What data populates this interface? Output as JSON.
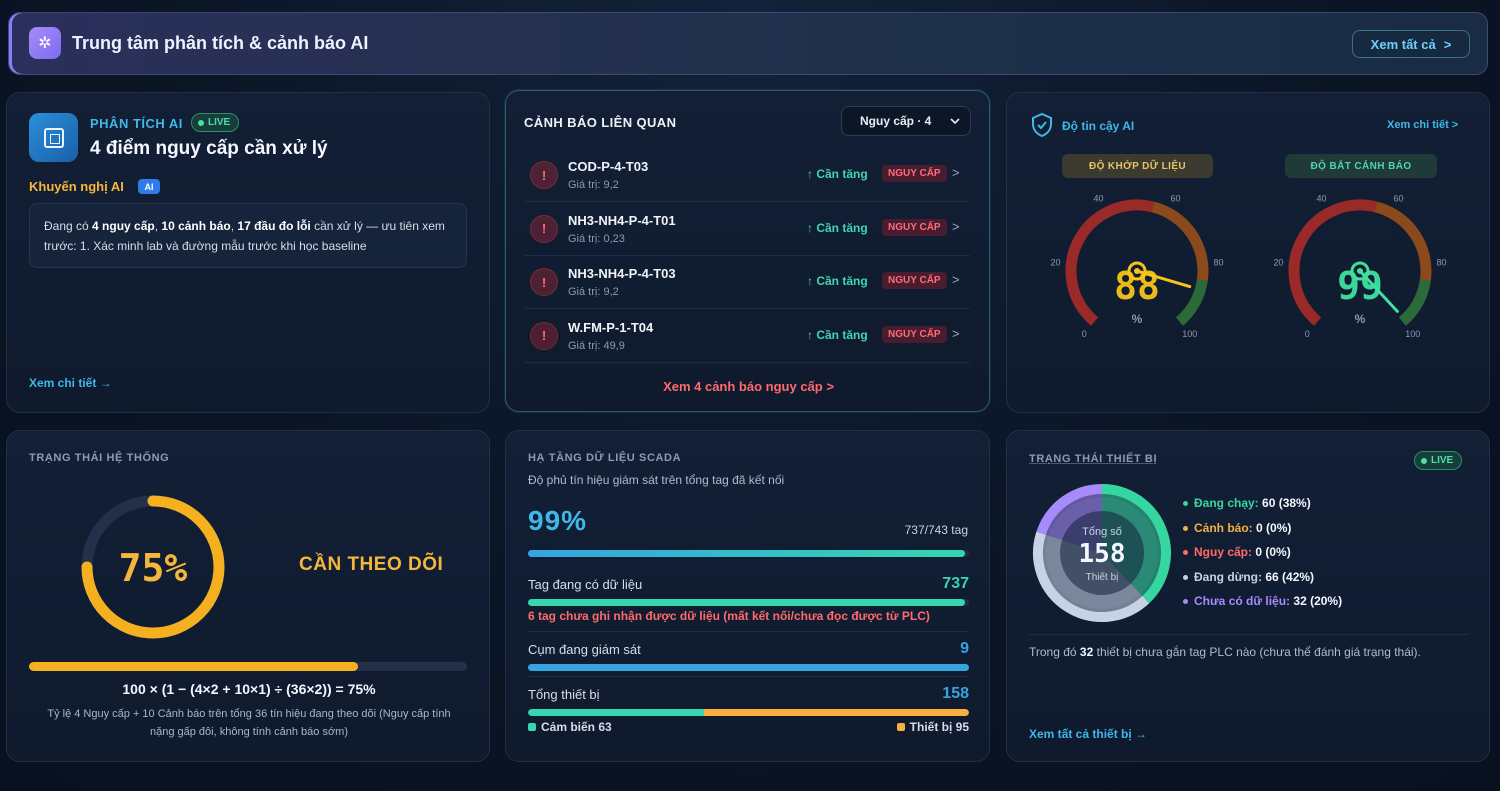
{
  "header": {
    "icon": "sparkle-gear-icon",
    "title": "Trung tâm phân tích & cảnh báo AI",
    "view_all": "Xem tất cả",
    "view_all_chevron": ">"
  },
  "ai_analysis": {
    "label": "PHÂN TÍCH AI",
    "live": "LIVE",
    "title": "4 điểm nguy cấp cần xử lý",
    "recommend_label": "Khuyến nghị AI",
    "ai_badge": "AI",
    "message_parts": {
      "p1": "Đang có ",
      "b1": "4 nguy cấp",
      "p2": ", ",
      "b2": "10 cảnh báo",
      "p3": ", ",
      "b3": "17 đầu đo lỗi",
      "p4": " cần xử lý — ưu tiên xem trước: 1. Xác minh lab và đường mẫu trước khi học baseline"
    },
    "more": "Xem chi tiết →"
  },
  "alerts": {
    "title": "CẢNH BÁO LIÊN QUAN",
    "filter": "Nguy cấp · 4",
    "items": [
      {
        "name": "COD-P-4-T03",
        "value": "Giá trị: 9,2",
        "trend": "↑ Cần tăng",
        "severity": "NGUY CẤP"
      },
      {
        "name": "NH3-NH4-P-4-T01",
        "value": "Giá trị: 0,23",
        "trend": "↑ Cần tăng",
        "severity": "NGUY CẤP"
      },
      {
        "name": "NH3-NH4-P-4-T03",
        "value": "Giá trị: 9,2",
        "trend": "↑ Cần tăng",
        "severity": "NGUY CẤP"
      },
      {
        "name": "W.FM-P-1-T04",
        "value": "Giá trị: 49,9",
        "trend": "↑ Cần tăng",
        "severity": "NGUY CẤP"
      }
    ],
    "icon_glyph": "!",
    "chevron": ">",
    "more": "Xem 4 cảnh báo nguy cấp >"
  },
  "reliability": {
    "title": "Độ tin cậy AI",
    "more": "Xem chi tiết >",
    "gauges": [
      {
        "label": "ĐỘ KHỚP DỮ LIỆU",
        "value": 88,
        "value_text": "88",
        "unit": "%",
        "color": "#f5c518"
      },
      {
        "label": "ĐỘ BẮT CẢNH BÁO",
        "value": 99,
        "value_text": "99",
        "unit": "%",
        "color": "#3fe0a0"
      }
    ],
    "ticks": [
      "0",
      "20",
      "40",
      "60",
      "80",
      "100"
    ]
  },
  "system_status": {
    "title": "TRẠNG THÁI HỆ THỐNG",
    "percent": 75,
    "percent_text": "75%",
    "status": "CẦN THEO DÕI",
    "formula": "100 × (1 − (4×2 + 10×1) ÷ (36×2)) = 75%",
    "description": "Tỷ lệ 4 Nguy cấp + 10 Cảnh báo trên tổng 36 tín hiệu đang theo dõi (Nguy cấp tính nặng gấp đôi, không tính cảnh báo sớm)"
  },
  "scada": {
    "title": "HẠ TẦNG DỮ LIỆU SCADA",
    "subtitle": "Độ phủ tín hiệu giám sát trên tổng tag đã kết nối",
    "coverage_text": "99%",
    "coverage": 0.99,
    "tags_text": "737/743 tag",
    "rows": [
      {
        "label": "Tag đang có dữ liệu",
        "value": "737",
        "color": "#35d6b0",
        "fill": 0.99
      },
      {
        "label": "Cụm đang giám sát",
        "value": "9",
        "color": "#35a4e0",
        "fill": 1.0
      },
      {
        "label": "Tổng thiết bị",
        "value": "158",
        "color": "#35a4e0",
        "split": 0.4
      }
    ],
    "warning": "6 tag chưa ghi nhận được dữ liệu (mất kết nối/chưa đọc được từ PLC)",
    "legend": [
      {
        "label": "Cảm biến 63",
        "color": "#35d6b0"
      },
      {
        "label": "Thiết bị 95",
        "color": "#f5b040"
      }
    ]
  },
  "devices": {
    "title": "TRẠNG THÁI THIẾT BỊ",
    "live": "LIVE",
    "total_label": "Tổng số",
    "total": "158",
    "unit_label": "Thiết bị",
    "legend": [
      {
        "label": "Đang chạy:",
        "value": "60 (38%)",
        "color": "#35d6a0",
        "fraction": 0.38
      },
      {
        "label": "Cảnh báo:",
        "value": "0 (0%)",
        "color": "#f5b040",
        "fraction": 0
      },
      {
        "label": "Nguy cấp:",
        "value": "0 (0%)",
        "color": "#ff6b6b",
        "fraction": 0
      },
      {
        "label": "Đang dừng:",
        "value": "66 (42%)",
        "color": "#c7d2e4",
        "fraction": 0.42
      },
      {
        "label": "Chưa có dữ liệu:",
        "value": "32 (20%)",
        "color": "#a78bfa",
        "fraction": 0.2
      }
    ],
    "note_parts": {
      "p1": "Trong đó ",
      "b1": "32",
      "p2": " thiết bị chưa gắn tag PLC nào (chưa thể đánh giá trạng thái)."
    },
    "more": "Xem tất cả thiết bị →"
  }
}
